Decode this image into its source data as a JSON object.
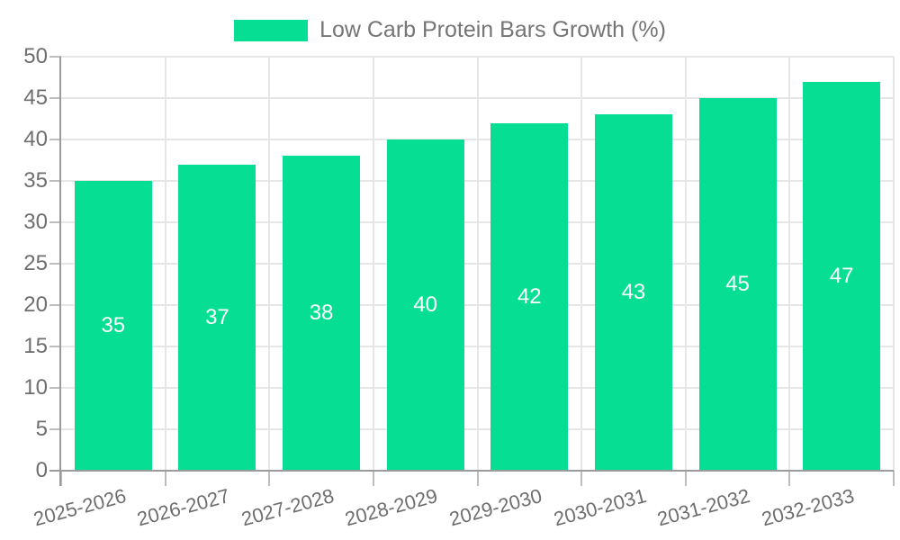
{
  "legend": {
    "label": "Low Carb Protein Bars Growth (%)"
  },
  "colors": {
    "bar": "#06DE93",
    "axis_line": "#9B9B9B",
    "grid_line": "#E6E6E6",
    "tick_mark": "#BDBDBD",
    "tick_text": "#6E6E6E",
    "legend_text": "#757575",
    "bar_label_text": "#FFFFFF"
  },
  "chart_data": {
    "type": "bar",
    "title": "Low Carb Protein Bars Growth (%)",
    "categories": [
      "2025-2026",
      "2026-2027",
      "2027-2028",
      "2028-2029",
      "2029-2030",
      "2030-2031",
      "2031-2032",
      "2032-2033"
    ],
    "values": [
      35,
      37,
      38,
      40,
      42,
      43,
      45,
      47
    ],
    "bar_labels": [
      "35",
      "37",
      "38",
      "40",
      "42",
      "43",
      "45",
      "47"
    ],
    "xlabel": "",
    "ylabel": "",
    "ylim": [
      0,
      50
    ],
    "ytick_step": 5,
    "ytick_labels": [
      "0",
      "5",
      "10",
      "15",
      "20",
      "25",
      "30",
      "35",
      "40",
      "45",
      "50"
    ],
    "grid": "horizontal and vertical gridlines on",
    "legend_position": "top-center",
    "x_tick_rotation_deg": -15,
    "bar_label_position": "center-inside"
  }
}
